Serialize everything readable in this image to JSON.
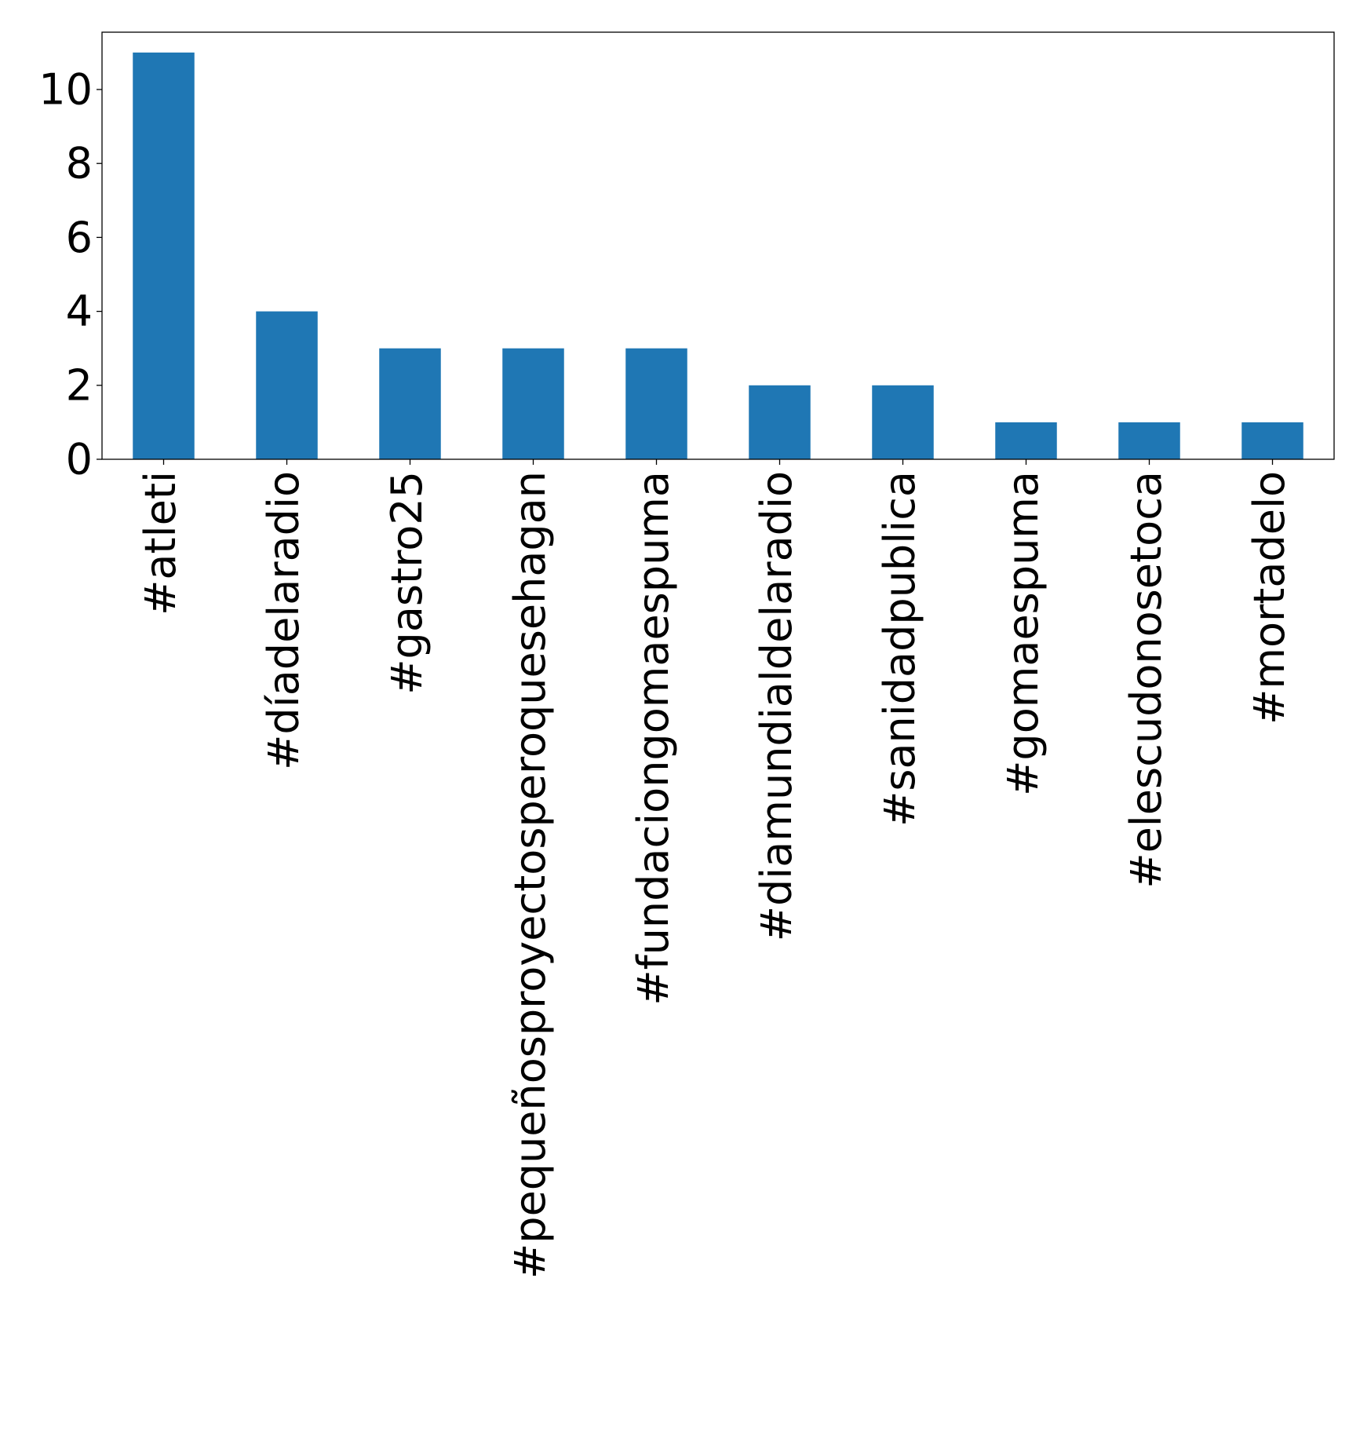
{
  "chart_data": {
    "type": "bar",
    "title": "",
    "xlabel": "",
    "ylabel": "",
    "categories": [
      "#atleti",
      "#díadelaradio",
      "#gastro25",
      "#pequeñosproyectosperoquesehagan",
      "#fundaciongomaespuma",
      "#diamundialdelaradio",
      "#sanidadpublica",
      "#gomaespuma",
      "#elescudonosetoca",
      "#mortadelo"
    ],
    "values": [
      11,
      4,
      3,
      3,
      3,
      2,
      2,
      1,
      1,
      1
    ],
    "ylim": [
      0,
      11.55
    ],
    "yticks": [
      0,
      2,
      4,
      6,
      8,
      10
    ],
    "grid": false,
    "legend": "none",
    "bar_color": "#1f77b4"
  }
}
